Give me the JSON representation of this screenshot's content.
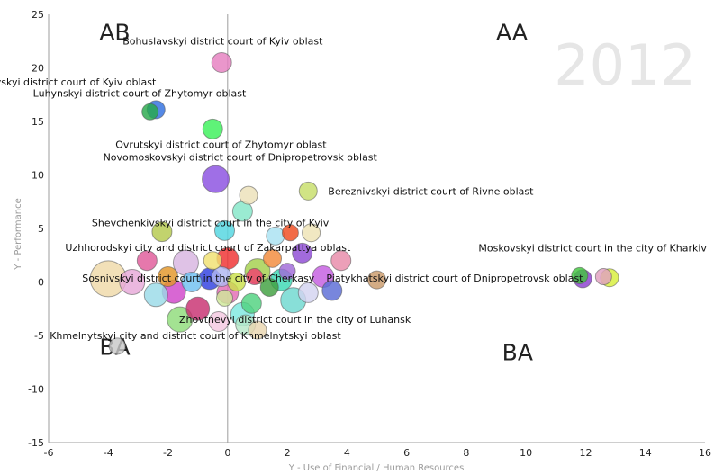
{
  "chart_data": {
    "type": "scatter",
    "title": "",
    "year_label": "2012",
    "xlabel": "Y - Use of Financial / Human Resources",
    "ylabel": "Y - Performance",
    "xlim": [
      -6,
      16
    ],
    "ylim": [
      -15,
      25
    ],
    "x_ticks": [
      -6,
      -4,
      -2,
      0,
      2,
      4,
      6,
      8,
      10,
      12,
      14,
      16
    ],
    "y_ticks": [
      -15,
      -10,
      -5,
      0,
      5,
      10,
      15,
      20,
      25
    ],
    "grid": false,
    "quadrant_labels": [
      {
        "text": "AB",
        "x": -4.3,
        "y": 22.6
      },
      {
        "text": "AA",
        "x": 9.0,
        "y": 22.6
      },
      {
        "text": "BA",
        "x": -4.3,
        "y": -6.8
      },
      {
        "text": "BA",
        "x": 9.2,
        "y": -7.3
      }
    ],
    "labeled_points": [
      {
        "label": "Bohuslavskyi district court of Kyiv oblast",
        "x": -0.2,
        "y": 20.5,
        "size": 0.55,
        "color": "#e57fbf"
      },
      {
        "label": "Myronivskyi district court of Kyiv oblast",
        "x": -2.4,
        "y": 16.1,
        "size": 0.5,
        "color": "#2f6fe0"
      },
      {
        "label": "Luhynskyi district court of Zhytomyr oblast",
        "x": -2.6,
        "y": 15.9,
        "size": 0.45,
        "color": "#27a84a"
      },
      {
        "label": "Ovrutskyi district court of Zhytomyr oblast",
        "x": -0.5,
        "y": 14.3,
        "size": 0.55,
        "color": "#3cf05a"
      },
      {
        "label": "Novomoskovskyi district court of Dnipropetrovsk oblast",
        "x": -0.4,
        "y": 9.6,
        "size": 0.75,
        "color": "#8a4fe0"
      },
      {
        "label": "Bereznivskyi district court of Rivne oblast",
        "x": 2.7,
        "y": 8.5,
        "size": 0.5,
        "color": "#c7de6a"
      },
      {
        "label": "Shevchenkivskyi district court in the city of Kyiv",
        "x": -2.2,
        "y": 4.7,
        "size": 0.55,
        "color": "#b5c94d"
      },
      {
        "label": "Uzhhorodskyi city and district court of Zakarpattya oblast",
        "x": 2.1,
        "y": 4.6,
        "size": 0.45,
        "color": "#ef4a1f"
      },
      {
        "label": "Moskovskyi district court in the city of Kharkiv",
        "x": 12.8,
        "y": 0.4,
        "size": 0.5,
        "color": "#d8ef3a"
      },
      {
        "label": "Piatykhatskyi district court of Dnipropetrovsk oblast",
        "x": 5.0,
        "y": 0.2,
        "size": 0.5,
        "color": "#c99a6a"
      },
      {
        "label": "Sosnivskyi district court in the city of Cherkasy",
        "x": -4.0,
        "y": 0.3,
        "size": 1.0,
        "color": "#efd9a8"
      },
      {
        "label": "Zhovtnevyi district court in the city of Luhansk",
        "x": 1.0,
        "y": -4.5,
        "size": 0.5,
        "color": "#e9d6b0"
      },
      {
        "label": "Khmelnytskyi city and district court of Khmelnytskyi oblast",
        "x": -3.7,
        "y": -6.0,
        "size": 0.45,
        "color": "#c8c8c8"
      }
    ],
    "cluster_points": [
      {
        "x": 11.9,
        "y": 0.3,
        "size": 0.5,
        "color": "#8b3fd0"
      },
      {
        "x": 11.8,
        "y": 0.6,
        "size": 0.45,
        "color": "#41c43e"
      },
      {
        "x": 12.6,
        "y": 0.5,
        "size": 0.45,
        "color": "#e0a0c0"
      },
      {
        "x": 0.7,
        "y": 8.1,
        "size": 0.5,
        "color": "#ece0b8"
      },
      {
        "x": 0.5,
        "y": 6.6,
        "size": 0.55,
        "color": "#84e6c8"
      },
      {
        "x": -0.1,
        "y": 4.8,
        "size": 0.55,
        "color": "#52d6e0"
      },
      {
        "x": 1.6,
        "y": 4.3,
        "size": 0.5,
        "color": "#a8e2f2"
      },
      {
        "x": 2.8,
        "y": 4.6,
        "size": 0.5,
        "color": "#eee3b5"
      },
      {
        "x": 2.5,
        "y": 2.7,
        "size": 0.55,
        "color": "#8e4bd4"
      },
      {
        "x": 3.8,
        "y": 2.0,
        "size": 0.55,
        "color": "#e88aa8"
      },
      {
        "x": 3.5,
        "y": -0.8,
        "size": 0.55,
        "color": "#5a6bd6"
      },
      {
        "x": 3.2,
        "y": 0.5,
        "size": 0.6,
        "color": "#c55de0"
      },
      {
        "x": 2.2,
        "y": -1.7,
        "size": 0.7,
        "color": "#6ed8d0"
      },
      {
        "x": 1.8,
        "y": 0.2,
        "size": 0.6,
        "color": "#3ad9b3"
      },
      {
        "x": 1.0,
        "y": 1.0,
        "size": 0.7,
        "color": "#a4d04c"
      },
      {
        "x": 0.5,
        "y": -3.0,
        "size": 0.65,
        "color": "#7ee8e0"
      },
      {
        "x": 0.0,
        "y": -1.0,
        "size": 0.6,
        "color": "#e36bb5"
      },
      {
        "x": 0.0,
        "y": 2.2,
        "size": 0.6,
        "color": "#ef3030"
      },
      {
        "x": -0.6,
        "y": 0.3,
        "size": 0.6,
        "color": "#2f3fe0"
      },
      {
        "x": -0.2,
        "y": 0.5,
        "size": 0.55,
        "color": "#b0b6f2"
      },
      {
        "x": -1.0,
        "y": -2.5,
        "size": 0.65,
        "color": "#c83070"
      },
      {
        "x": -1.4,
        "y": 1.8,
        "size": 0.7,
        "color": "#d8b4e0"
      },
      {
        "x": -1.8,
        "y": -0.9,
        "size": 0.65,
        "color": "#d046c9"
      },
      {
        "x": -2.0,
        "y": 0.5,
        "size": 0.55,
        "color": "#e39628"
      },
      {
        "x": -2.4,
        "y": -1.2,
        "size": 0.65,
        "color": "#9adbe8"
      },
      {
        "x": -2.7,
        "y": 2.0,
        "size": 0.55,
        "color": "#e05a9a"
      },
      {
        "x": -3.2,
        "y": 0.0,
        "size": 0.7,
        "color": "#e6a8d8"
      },
      {
        "x": -1.6,
        "y": -3.5,
        "size": 0.7,
        "color": "#8fdc7a"
      },
      {
        "x": 0.3,
        "y": 0.0,
        "size": 0.5,
        "color": "#cbe04a"
      },
      {
        "x": 1.4,
        "y": -0.5,
        "size": 0.5,
        "color": "#40a040"
      },
      {
        "x": 2.7,
        "y": -1.0,
        "size": 0.55,
        "color": "#d3d3f0"
      },
      {
        "x": 0.8,
        "y": -2.0,
        "size": 0.55,
        "color": "#4fd27f"
      },
      {
        "x": -0.5,
        "y": 2.0,
        "size": 0.5,
        "color": "#f0e070"
      },
      {
        "x": 1.5,
        "y": 2.2,
        "size": 0.5,
        "color": "#f28a3a"
      },
      {
        "x": -1.2,
        "y": 0.0,
        "size": 0.55,
        "color": "#6fc0f0"
      },
      {
        "x": 0.6,
        "y": -4.0,
        "size": 0.55,
        "color": "#b7e8c8"
      },
      {
        "x": -0.3,
        "y": -3.7,
        "size": 0.55,
        "color": "#f4c8e0"
      },
      {
        "x": 2.0,
        "y": 1.0,
        "size": 0.45,
        "color": "#a06ad8"
      },
      {
        "x": 0.9,
        "y": 0.5,
        "size": 0.45,
        "color": "#f04070"
      },
      {
        "x": -0.1,
        "y": -1.5,
        "size": 0.45,
        "color": "#cfe89a"
      }
    ]
  }
}
